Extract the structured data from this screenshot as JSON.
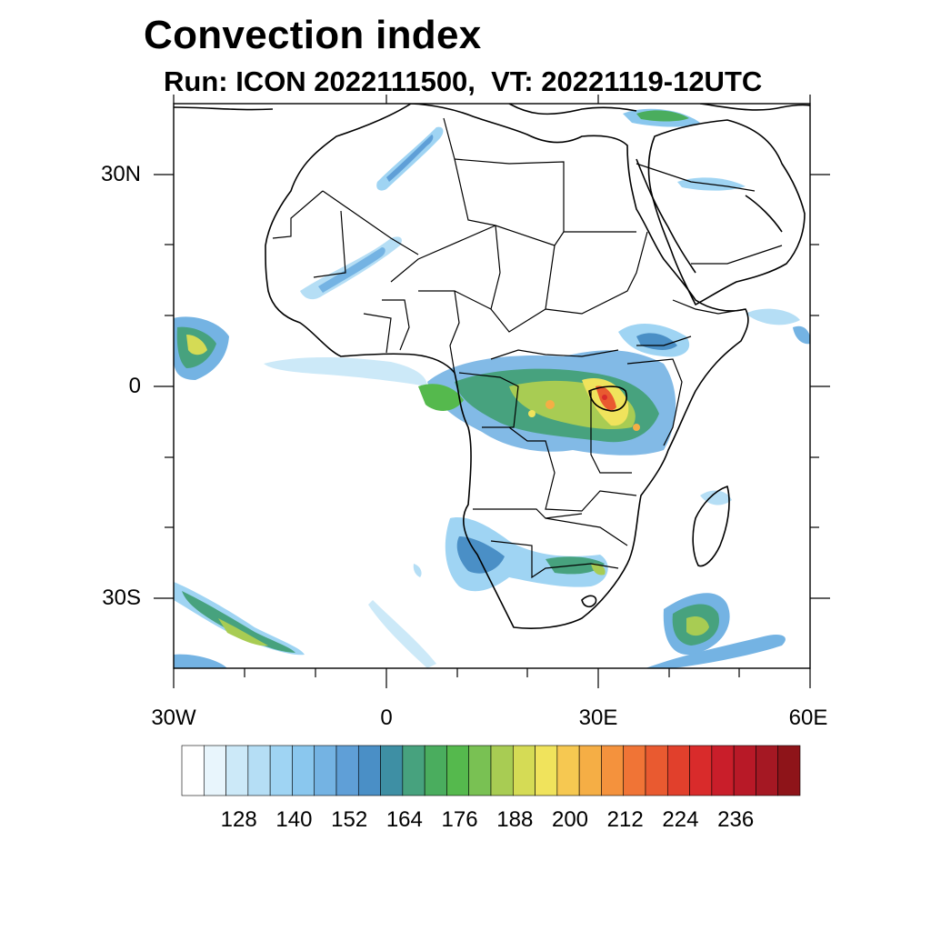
{
  "title": "Convection index",
  "subtitle": "Run: ICON 2022111500,  VT: 20221119-12UTC",
  "axes": {
    "lat_labels": [
      "30N",
      "0",
      "30S"
    ],
    "lon_labels": [
      "30W",
      "0",
      "30E",
      "60E"
    ]
  },
  "colorbar": {
    "labels": [
      "128",
      "140",
      "152",
      "164",
      "176",
      "188",
      "200",
      "212",
      "224",
      "236"
    ],
    "colors": [
      "#ffffff",
      "#e8f5fc",
      "#cce9f8",
      "#b5def5",
      "#9fd4f3",
      "#8ac7ee",
      "#74b3e3",
      "#5f9fd7",
      "#4a8fc6",
      "#3e8fa4",
      "#47a27e",
      "#4aad5e",
      "#55b94d",
      "#79c153",
      "#a8cc53",
      "#d5db55",
      "#f0e35c",
      "#f6c851",
      "#f5ae45",
      "#f4923d",
      "#f07436",
      "#e95a30",
      "#e1402c",
      "#d92b2b",
      "#c91e2a",
      "#b81927",
      "#a51823",
      "#8e1419"
    ]
  },
  "chart_data": {
    "type": "heatmap",
    "title": "Convection index",
    "subtitle": "Run: ICON 2022111500,  VT: 20221119-12UTC",
    "x_range_deg": [
      -30,
      60
    ],
    "y_range_deg": [
      -40,
      40
    ],
    "x_ticks": [
      "30W",
      "0",
      "30E",
      "60E"
    ],
    "y_ticks": [
      "30N",
      "0",
      "30S"
    ],
    "colorbar_levels": [
      128,
      140,
      152,
      164,
      176,
      188,
      200,
      212,
      224,
      236
    ]
  }
}
